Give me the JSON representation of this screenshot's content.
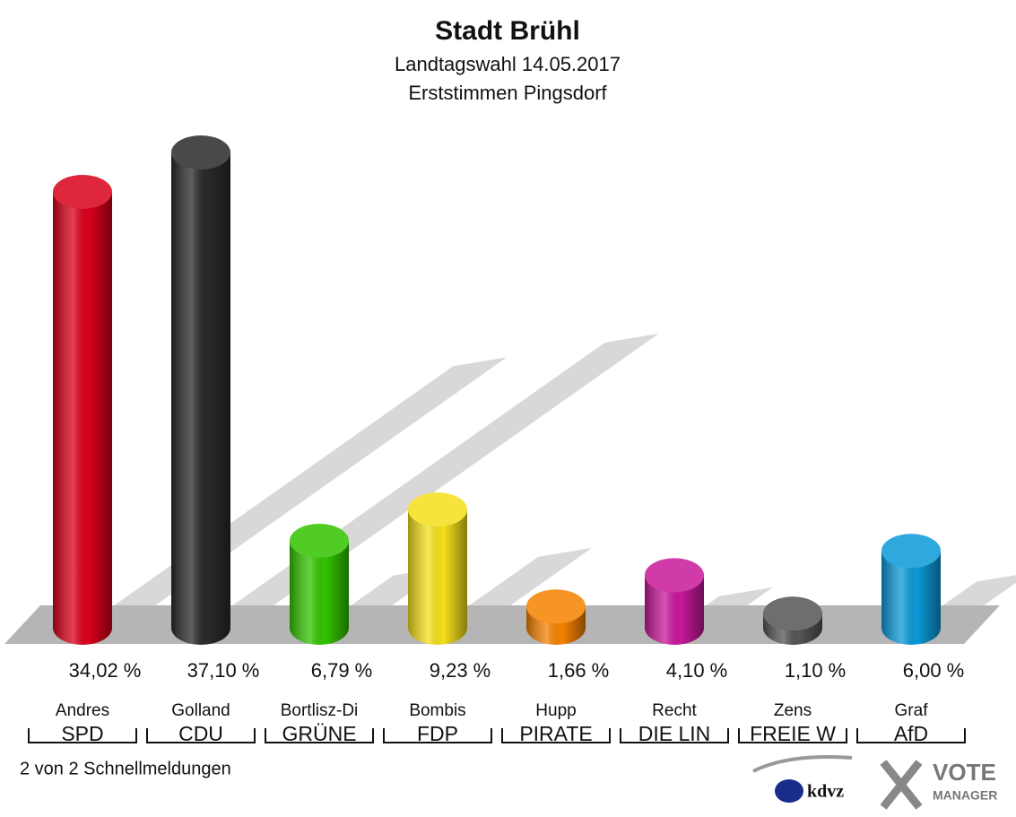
{
  "chart_data": {
    "type": "bar3d",
    "title": "Stadt Brühl",
    "subtitle": "Landtagswahl 14.05.2017",
    "subtitle2": "Erststimmen Pingsdorf",
    "categories": [
      "Andres",
      "Golland",
      "Bortlisz-Di",
      "Bombis",
      "Hupp",
      "Recht",
      "Zens",
      "Graf"
    ],
    "parties": [
      "SPD",
      "CDU",
      "GRÜNE",
      "FDP",
      "PIRATE",
      "DIE LIN",
      "FREIE W",
      "AfD"
    ],
    "values": [
      34.02,
      37.1,
      6.79,
      9.23,
      1.66,
      4.1,
      1.1,
      6.0
    ],
    "value_labels": [
      "34,02 %",
      "37,10 %",
      "6,79 %",
      "9,23 %",
      "1,66 %",
      "4,10 %",
      "1,10 %",
      "6,00 %"
    ],
    "colors": [
      "#d9001b",
      "#2a2a2a",
      "#33c400",
      "#f5e01a",
      "#f58200",
      "#c8189a",
      "#555555",
      "#0b9ad8"
    ],
    "footer": "2 von 2 Schnellmeldungen",
    "logo_left": "kdvz",
    "logo_right": "VOTE",
    "logo_right2": "MANAGER"
  }
}
